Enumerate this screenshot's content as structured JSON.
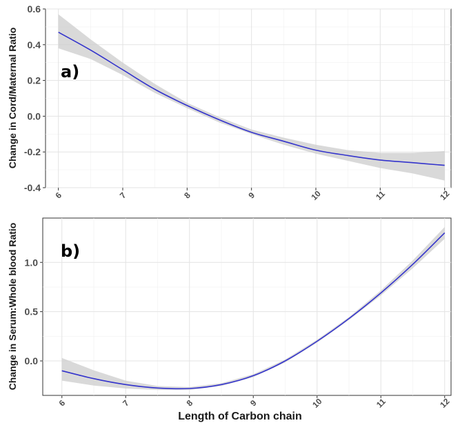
{
  "figure": {
    "xlabel": "Length of Carbon chain"
  },
  "chart_data": [
    {
      "type": "line",
      "panel_label": "a)",
      "title": "",
      "xlabel": "",
      "ylabel": "Change in Cord/Maternal Ratio",
      "xlim": [
        5.8,
        12.1
      ],
      "ylim": [
        -0.4,
        0.6
      ],
      "x_ticks": [
        6,
        7,
        8,
        9,
        10,
        11,
        12
      ],
      "y_ticks": [
        -0.4,
        -0.2,
        0.0,
        0.2,
        0.4,
        0.6
      ],
      "y_tick_labels": [
        "-0.4",
        "-0.2",
        "0.0",
        "0.2",
        "0.4",
        "0.6"
      ],
      "grid": true,
      "line_color": "#3333cc",
      "band_color": "#cccccc",
      "series": [
        {
          "x": [
            6,
            6.5,
            7,
            7.5,
            8,
            8.5,
            9,
            9.5,
            10,
            10.5,
            11,
            11.5,
            12
          ],
          "y": [
            0.47,
            0.37,
            0.26,
            0.15,
            0.06,
            -0.02,
            -0.09,
            -0.14,
            -0.19,
            -0.22,
            -0.245,
            -0.26,
            -0.275
          ],
          "lower": [
            0.38,
            0.32,
            0.23,
            0.13,
            0.045,
            -0.035,
            -0.1,
            -0.16,
            -0.21,
            -0.25,
            -0.29,
            -0.32,
            -0.36
          ],
          "upper": [
            0.57,
            0.43,
            0.3,
            0.18,
            0.075,
            -0.005,
            -0.075,
            -0.12,
            -0.16,
            -0.19,
            -0.205,
            -0.205,
            -0.195
          ]
        }
      ]
    },
    {
      "type": "line",
      "panel_label": "b)",
      "title": "",
      "xlabel": "Length of Carbon chain",
      "ylabel": "Change in Serum:Whole blood Ratio",
      "xlim": [
        5.7,
        12.1
      ],
      "ylim": [
        -0.35,
        1.45
      ],
      "x_ticks": [
        6,
        7,
        8,
        9,
        10,
        11,
        12
      ],
      "y_ticks": [
        0.0,
        0.5,
        1.0
      ],
      "y_tick_labels": [
        "0.0",
        "0.5",
        "1.0"
      ],
      "grid": true,
      "line_color": "#3333cc",
      "band_color": "#cccccc",
      "series": [
        {
          "x": [
            6,
            6.5,
            7,
            7.5,
            8,
            8.5,
            9,
            9.5,
            10,
            10.5,
            11,
            11.5,
            12
          ],
          "y": [
            -0.1,
            -0.18,
            -0.24,
            -0.275,
            -0.28,
            -0.24,
            -0.15,
            0.0,
            0.2,
            0.43,
            0.69,
            0.98,
            1.3
          ],
          "lower": [
            -0.2,
            -0.25,
            -0.28,
            -0.295,
            -0.295,
            -0.255,
            -0.165,
            -0.015,
            0.185,
            0.415,
            0.665,
            0.94,
            1.24
          ],
          "upper": [
            0.03,
            -0.095,
            -0.2,
            -0.255,
            -0.265,
            -0.225,
            -0.135,
            0.015,
            0.215,
            0.445,
            0.715,
            1.02,
            1.36
          ]
        }
      ]
    }
  ]
}
